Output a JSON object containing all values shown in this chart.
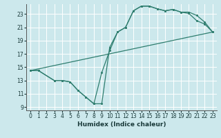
{
  "xlabel": "Humidex (Indice chaleur)",
  "background_color": "#cce8ec",
  "grid_color": "#ffffff",
  "line_color": "#2e7d6e",
  "xlim": [
    -0.5,
    23.5
  ],
  "ylim": [
    8.5,
    24.5
  ],
  "xticks": [
    0,
    1,
    2,
    3,
    4,
    5,
    6,
    7,
    8,
    9,
    10,
    11,
    12,
    13,
    14,
    15,
    16,
    17,
    18,
    19,
    20,
    21,
    22,
    23
  ],
  "yticks": [
    9,
    11,
    13,
    15,
    17,
    19,
    21,
    23
  ],
  "curve1_x": [
    0,
    1,
    3,
    4,
    5,
    6,
    7,
    8,
    9,
    10,
    11,
    12,
    13,
    14,
    15,
    16,
    17,
    18,
    19,
    20,
    21,
    22,
    23
  ],
  "curve1_y": [
    14.5,
    14.5,
    13.0,
    13.0,
    12.8,
    11.5,
    10.5,
    9.5,
    9.5,
    18.0,
    20.3,
    21.0,
    23.5,
    24.2,
    24.2,
    23.8,
    23.5,
    23.7,
    23.3,
    23.1,
    22.0,
    21.5,
    20.3
  ],
  "curve2_x": [
    0,
    1,
    3,
    4,
    5,
    6,
    7,
    8,
    9,
    10,
    11,
    12,
    13,
    14,
    15,
    16,
    17,
    18,
    19,
    20,
    21,
    22,
    23
  ],
  "curve2_y": [
    14.5,
    14.5,
    13.0,
    13.0,
    12.8,
    11.5,
    10.5,
    9.5,
    14.2,
    17.5,
    20.3,
    21.0,
    23.5,
    24.2,
    24.2,
    23.8,
    23.5,
    23.7,
    23.3,
    23.3,
    22.8,
    21.8,
    20.3
  ],
  "curve3_x": [
    0,
    23
  ],
  "curve3_y": [
    14.5,
    20.3
  ],
  "figsize": [
    3.2,
    2.0
  ],
  "dpi": 100
}
